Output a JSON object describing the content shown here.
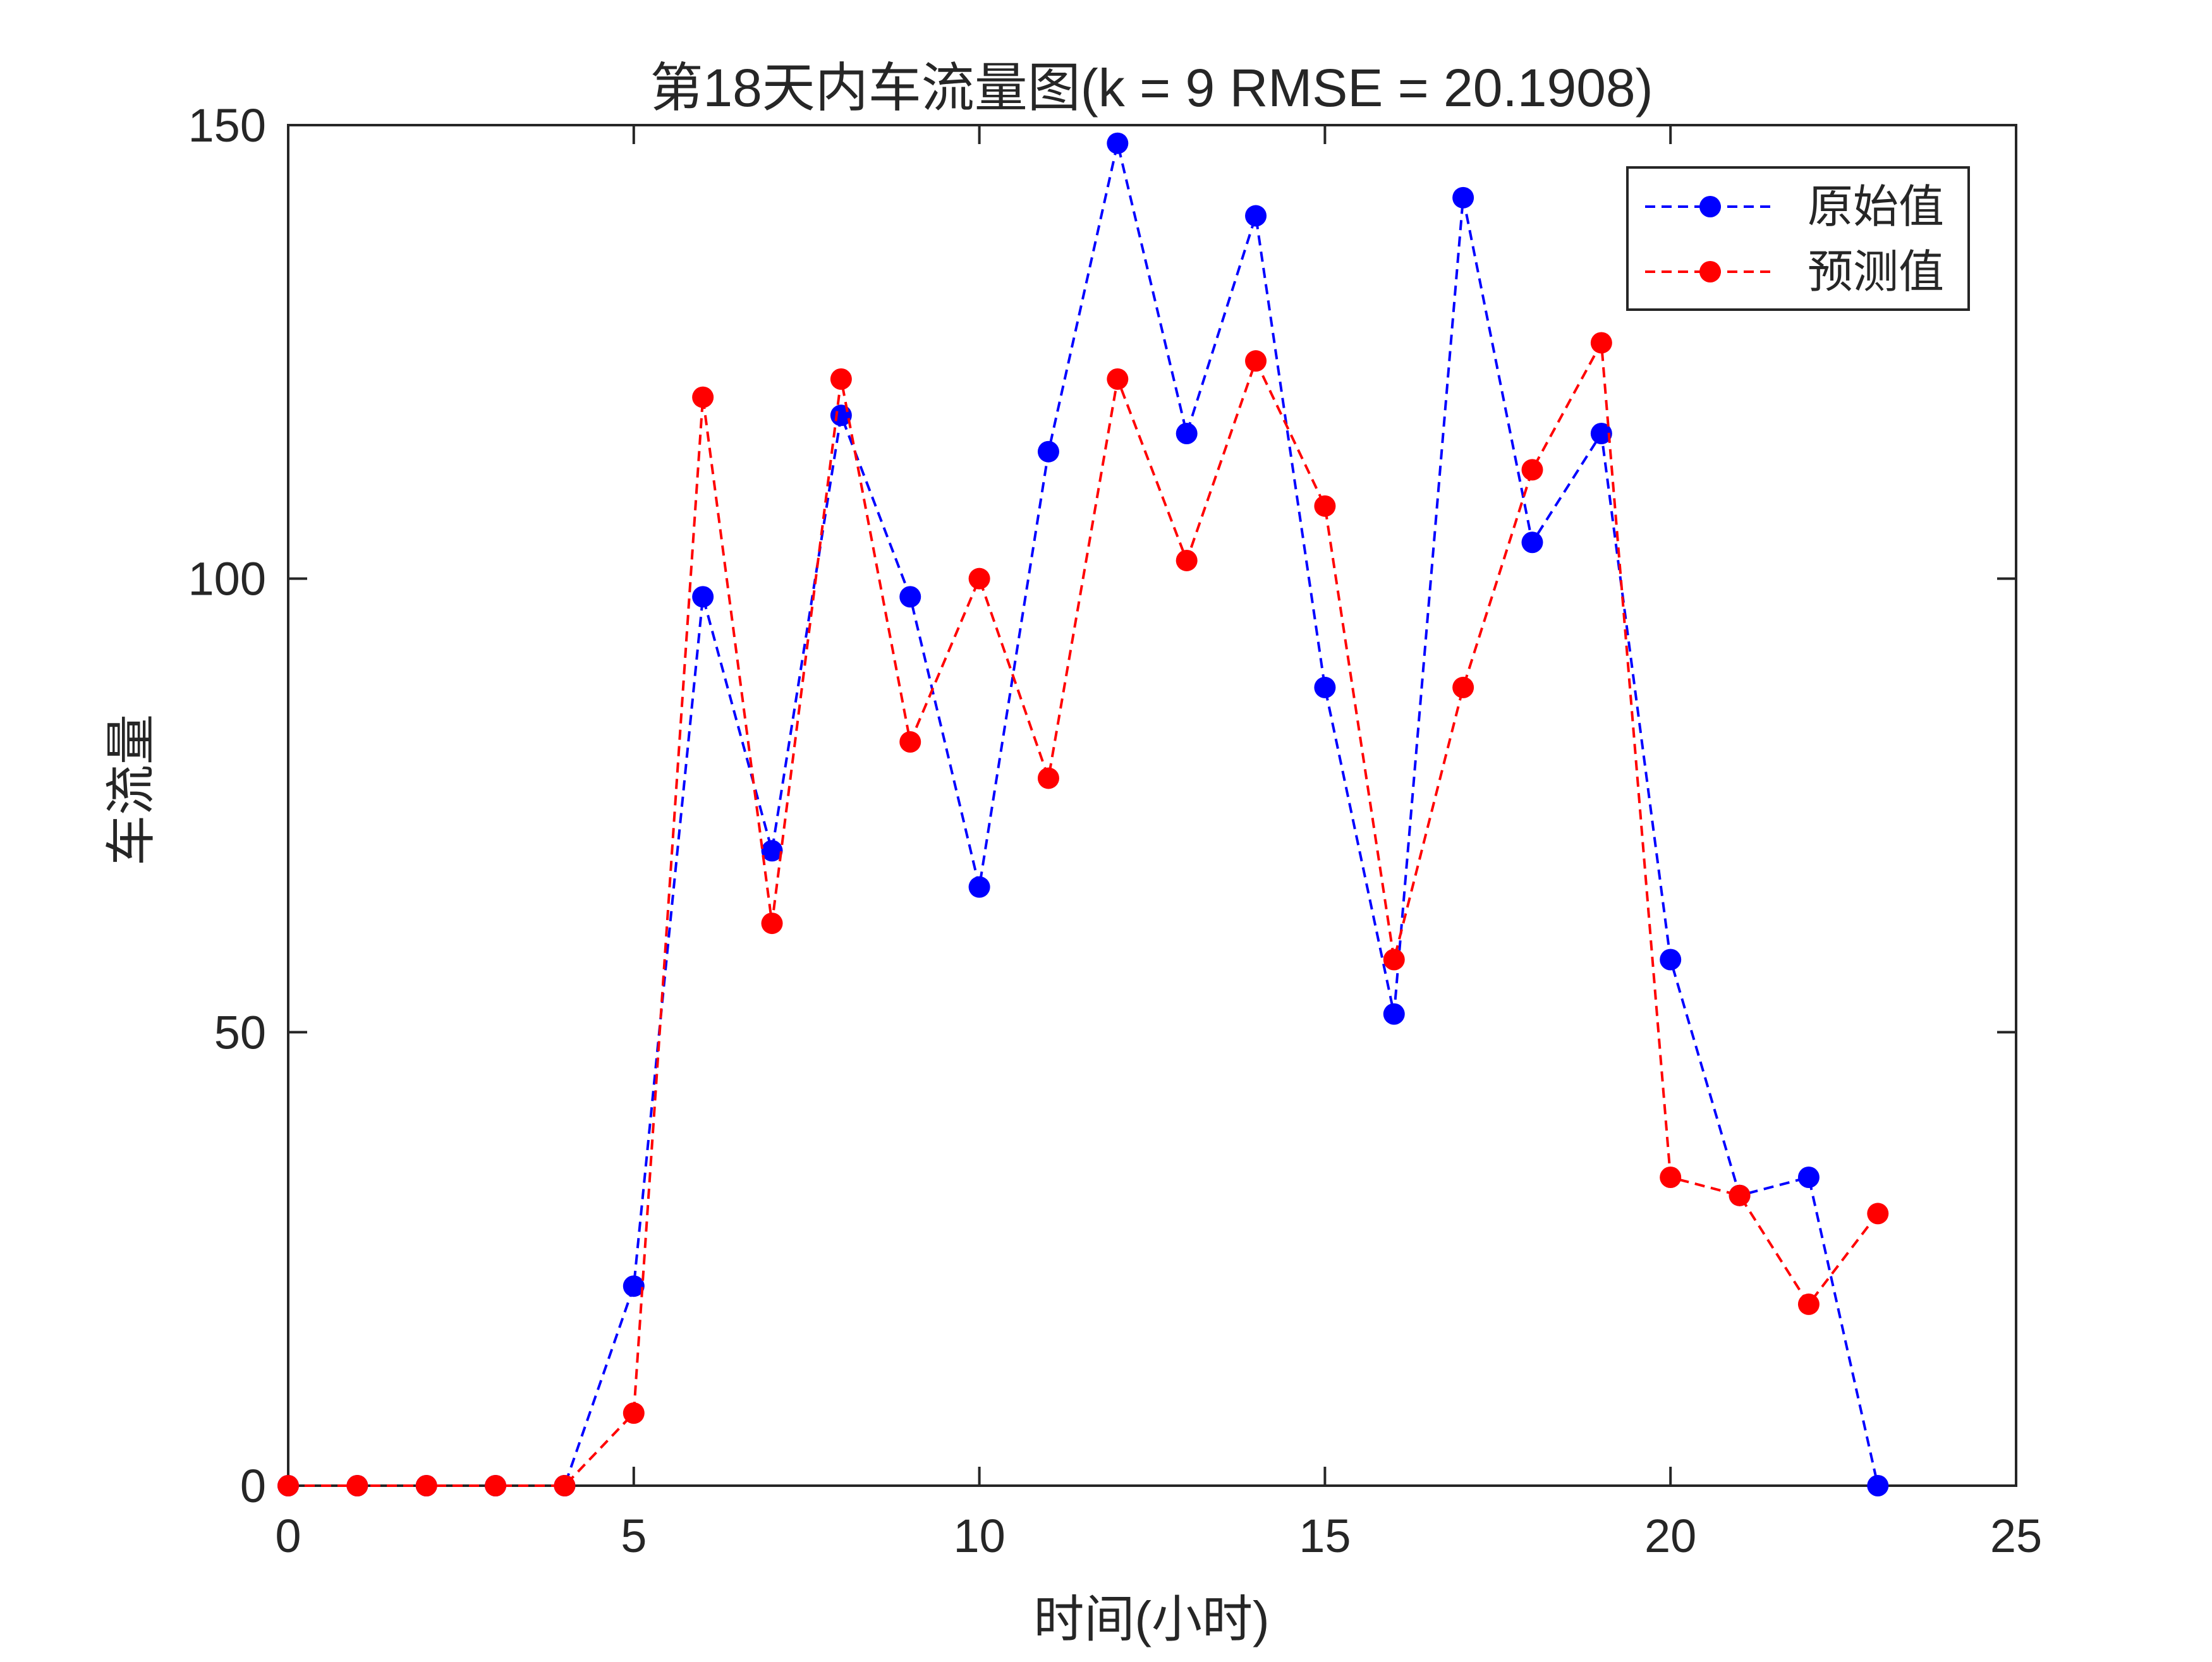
{
  "chart_data": {
    "type": "line",
    "title": "第18天内车流量图(k = 9 RMSE = 20.1908)",
    "xlabel": "时间(小时)",
    "ylabel": "车流量",
    "xlim": [
      0,
      25
    ],
    "ylim": [
      0,
      150
    ],
    "xticks": [
      0,
      5,
      10,
      15,
      20,
      25
    ],
    "yticks": [
      0,
      50,
      100,
      150
    ],
    "grid": false,
    "legend_position": "top-right",
    "x": [
      0,
      1,
      2,
      3,
      4,
      5,
      6,
      7,
      8,
      9,
      10,
      11,
      12,
      13,
      14,
      15,
      16,
      17,
      18,
      19,
      20,
      21,
      22,
      23
    ],
    "series": [
      {
        "name": "原始值",
        "color": "#0000ff",
        "line_style": "dashed",
        "marker": "filled-circle",
        "values": [
          0,
          0,
          0,
          0,
          0,
          22,
          98,
          70,
          118,
          98,
          66,
          114,
          148,
          116,
          140,
          88,
          52,
          142,
          104,
          116,
          58,
          32,
          34,
          0
        ]
      },
      {
        "name": "预测值",
        "color": "#ff0000",
        "line_style": "dashed",
        "marker": "filled-circle",
        "values": [
          0,
          0,
          0,
          0,
          0,
          8,
          120,
          62,
          122,
          82,
          100,
          78,
          122,
          102,
          124,
          108,
          58,
          88,
          112,
          126,
          34,
          32,
          20,
          30
        ]
      }
    ]
  }
}
